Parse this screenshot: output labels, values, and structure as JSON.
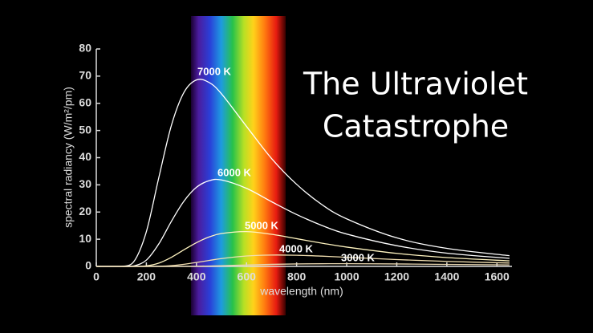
{
  "chart_data": {
    "type": "line",
    "title": [
      "The Ultraviolet",
      "Catastrophe"
    ],
    "xlabel": "wavelength (nm)",
    "ylabel": "spectral radiancy (W/m²/pm)",
    "xlim": [
      0,
      1660
    ],
    "ylim": [
      0,
      80
    ],
    "xticks": [
      0,
      200,
      400,
      600,
      800,
      1000,
      1200,
      1400,
      1600
    ],
    "yticks": [
      0,
      10,
      20,
      30,
      40,
      50,
      60,
      70,
      80
    ],
    "x": [
      100,
      150,
      200,
      250,
      300,
      350,
      400,
      450,
      500,
      600,
      700,
      800,
      900,
      1000,
      1200,
      1400,
      1650
    ],
    "series": [
      {
        "name": "7000 K",
        "color": "#ffffff",
        "values": [
          0.01,
          1.76,
          12.8,
          32.8,
          51.9,
          64.0,
          68.6,
          67.7,
          63.5,
          51.5,
          39.7,
          30.2,
          22.8,
          17.5,
          10.5,
          6.63,
          3.94
        ]
      },
      {
        "name": "6000 K",
        "color": "#ffffff",
        "values": [
          0,
          0.18,
          2.31,
          8.33,
          16.6,
          24.0,
          29.1,
          31.5,
          31.8,
          28.7,
          23.8,
          19.1,
          15.1,
          11.9,
          7.62,
          4.87,
          2.97
        ]
      },
      {
        "name": "5000 K",
        "color": "#fff4c0",
        "values": [
          0,
          0.01,
          0.21,
          1.22,
          3.35,
          6.1,
          8.74,
          10.8,
          12.1,
          12.8,
          11.8,
          10.2,
          8.57,
          7.1,
          4.79,
          3.25,
          2.05
        ]
      },
      {
        "name": "4000 K",
        "color": "#f2dfb0",
        "values": [
          0,
          0,
          0.01,
          0.07,
          0.3,
          0.78,
          1.44,
          2.18,
          2.87,
          3.83,
          4.18,
          4.1,
          3.78,
          3.36,
          2.52,
          1.84,
          1.24
        ]
      },
      {
        "name": "3000 K",
        "color": "#e8d6b0",
        "values": [
          0,
          0,
          0,
          0,
          0.01,
          0.03,
          0.07,
          0.15,
          0.26,
          0.52,
          0.75,
          0.91,
          0.98,
          0.99,
          0.9,
          0.74,
          0.56
        ]
      }
    ]
  }
}
